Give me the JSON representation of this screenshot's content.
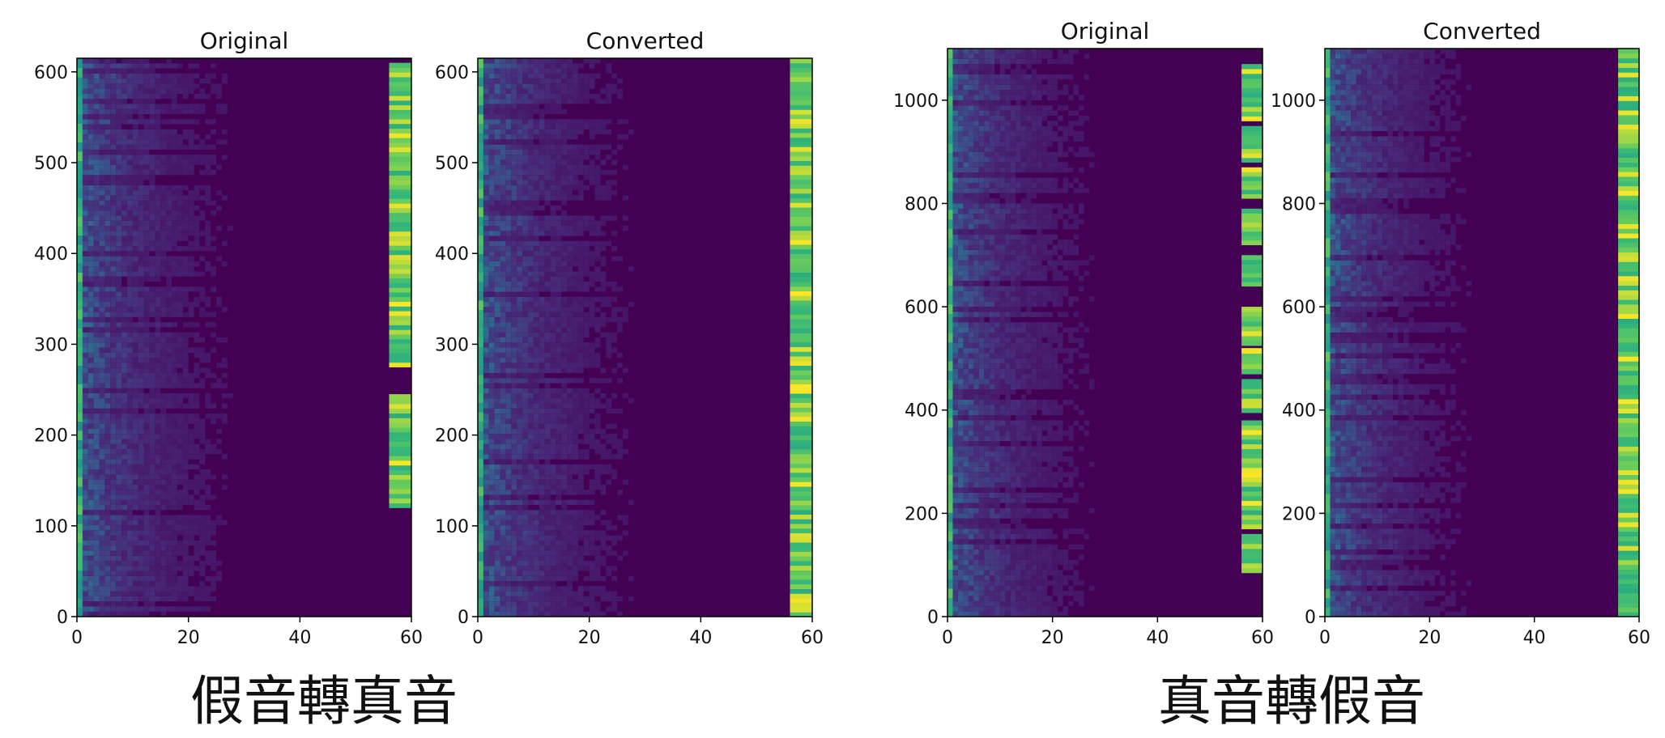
{
  "figure": {
    "captions": [
      "假音轉真音",
      "真音轉假音"
    ]
  },
  "palette": {
    "background": "#440154",
    "low": "#46327e",
    "mid": "#365c8d",
    "teal": "#1f9e89",
    "green": "#35b779",
    "lime": "#6ece58",
    "yellow": "#fde725"
  },
  "chart_data": [
    {
      "type": "heatmap",
      "group": "假音轉真音",
      "title": "Original",
      "xlabel": "",
      "ylabel": "",
      "xlim": [
        0,
        60
      ],
      "ylim": [
        0,
        615
      ],
      "xticks": [
        0,
        20,
        40,
        60
      ],
      "yticks": [
        0,
        100,
        200,
        300,
        400,
        500,
        600
      ],
      "rows": 615,
      "cols": 60,
      "high_column_band": {
        "x": [
          56,
          60
        ],
        "y_segments": [
          [
            120,
            245
          ],
          [
            275,
            610
          ]
        ]
      },
      "low_feature_band": {
        "x": [
          0,
          1
        ],
        "y": [
          0,
          615
        ]
      }
    },
    {
      "type": "heatmap",
      "group": "假音轉真音",
      "title": "Converted",
      "xlabel": "",
      "ylabel": "",
      "xlim": [
        0,
        60
      ],
      "ylim": [
        0,
        615
      ],
      "xticks": [
        0,
        20,
        40,
        60
      ],
      "yticks": [
        0,
        100,
        200,
        300,
        400,
        500,
        600
      ],
      "rows": 615,
      "cols": 60,
      "high_column_band": {
        "x": [
          56,
          60
        ],
        "y_segments": [
          [
            0,
            615
          ]
        ]
      },
      "low_feature_band": {
        "x": [
          0,
          1
        ],
        "y": [
          0,
          615
        ]
      }
    },
    {
      "type": "heatmap",
      "group": "真音轉假音",
      "title": "Original",
      "xlabel": "",
      "ylabel": "",
      "xlim": [
        0,
        60
      ],
      "ylim": [
        0,
        1100
      ],
      "xticks": [
        0,
        20,
        40,
        60
      ],
      "yticks": [
        0,
        200,
        400,
        600,
        800,
        1000
      ],
      "rows": 1100,
      "cols": 60,
      "high_column_band": {
        "x": [
          56,
          60
        ],
        "y_segments": [
          [
            85,
            160
          ],
          [
            170,
            380
          ],
          [
            395,
            460
          ],
          [
            470,
            520
          ],
          [
            525,
            600
          ],
          [
            640,
            700
          ],
          [
            720,
            790
          ],
          [
            810,
            870
          ],
          [
            880,
            950
          ],
          [
            960,
            1070
          ]
        ]
      },
      "low_feature_band": {
        "x": [
          0,
          1
        ],
        "y": [
          0,
          1100
        ]
      }
    },
    {
      "type": "heatmap",
      "group": "真音轉假音",
      "title": "Converted",
      "xlabel": "",
      "ylabel": "",
      "xlim": [
        0,
        60
      ],
      "ylim": [
        0,
        1100
      ],
      "xticks": [
        0,
        20,
        40,
        60
      ],
      "yticks": [
        0,
        200,
        400,
        600,
        800,
        1000
      ],
      "rows": 1100,
      "cols": 60,
      "high_column_band": {
        "x": [
          56,
          60
        ],
        "y_segments": [
          [
            0,
            1100
          ]
        ]
      },
      "low_feature_band": {
        "x": [
          0,
          1
        ],
        "y": [
          0,
          1100
        ]
      }
    }
  ]
}
